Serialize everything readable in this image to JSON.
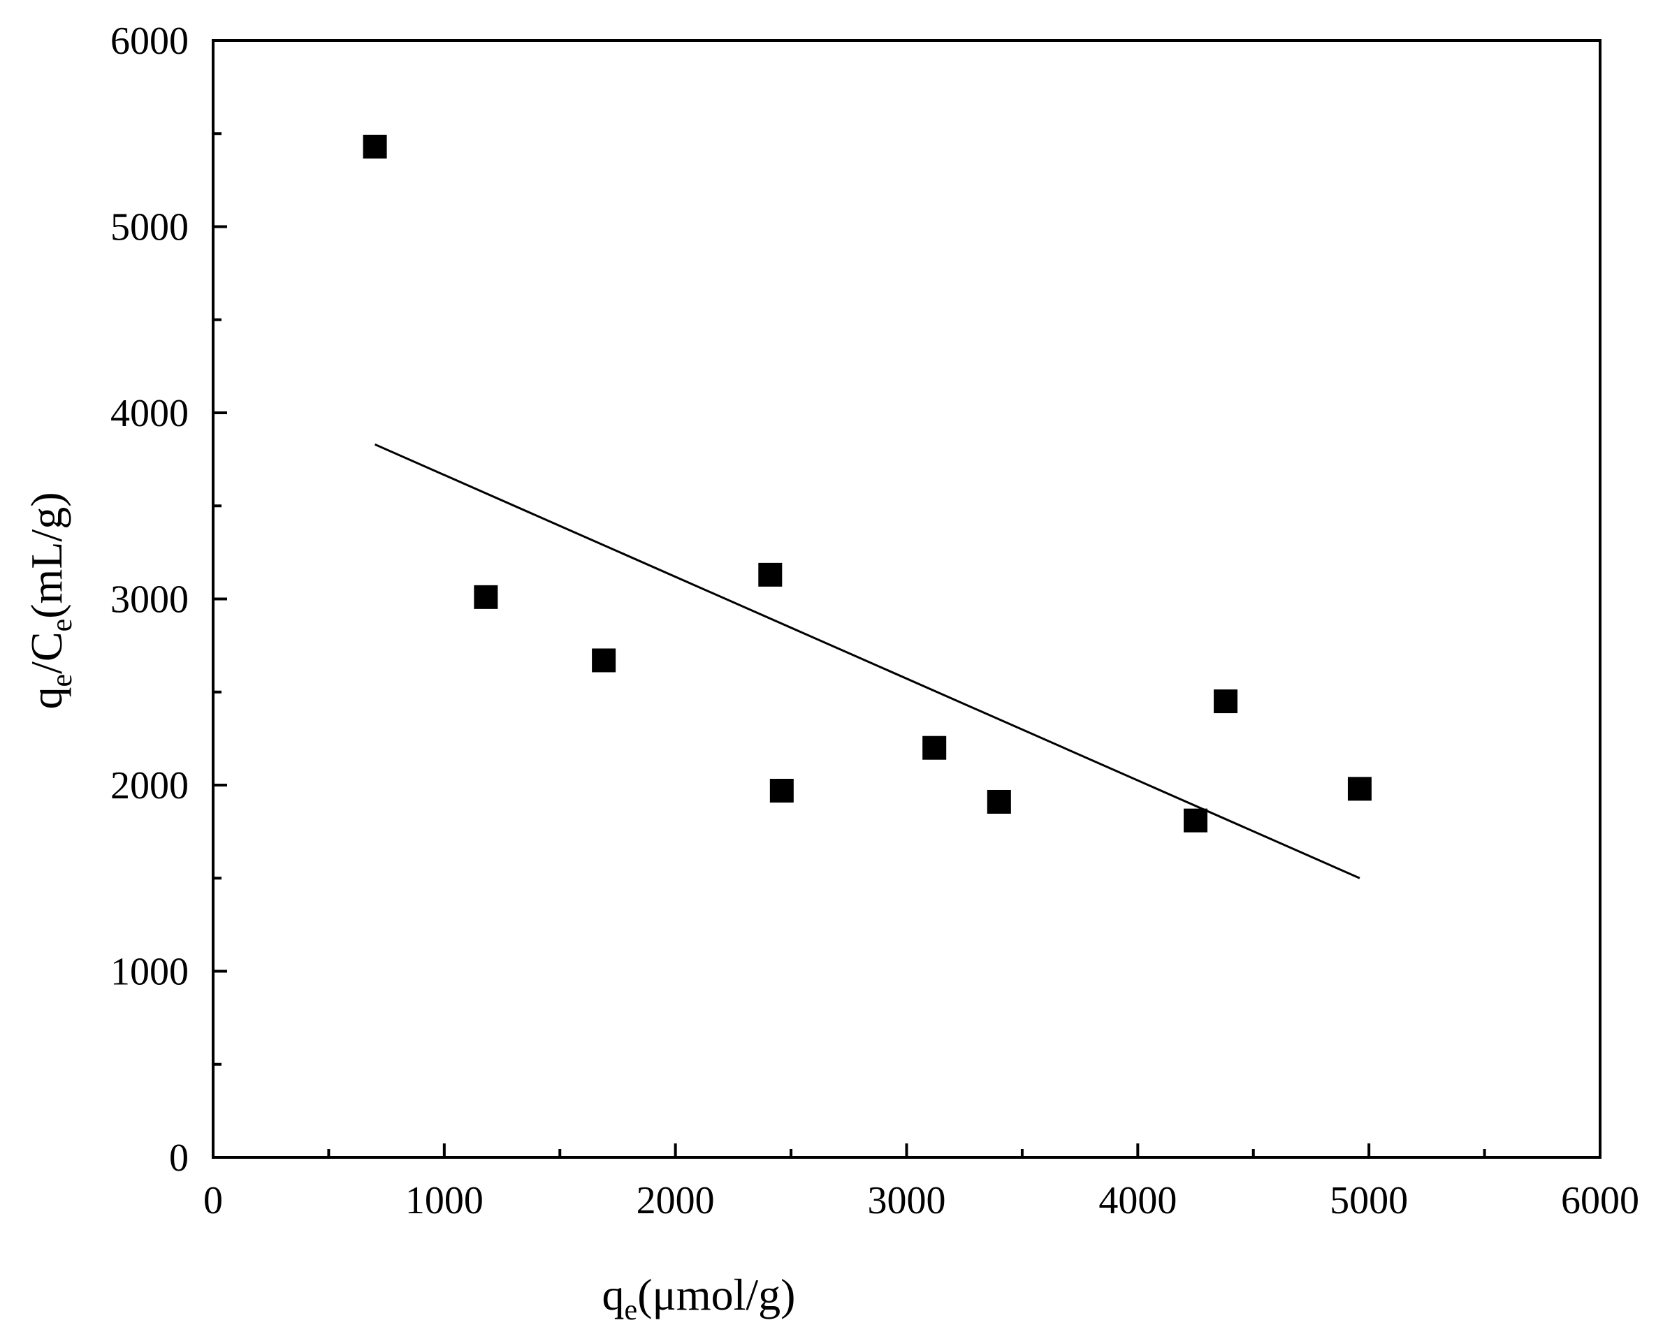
{
  "chart_data": {
    "type": "scatter",
    "xlabel": {
      "main": "q",
      "sub": "e",
      "rest": "(μmol/g)"
    },
    "ylabel": {
      "main1": "q",
      "sub1": "e",
      "mid": "/C",
      "sub2": "e",
      "rest": "(mL/g)"
    },
    "xlim": [
      0,
      6000
    ],
    "ylim": [
      0,
      6000
    ],
    "x_major_ticks": [
      0,
      1000,
      2000,
      3000,
      4000,
      5000,
      6000
    ],
    "x_minor_ticks": [
      500,
      1500,
      2500,
      3500,
      4500,
      5500
    ],
    "y_major_ticks": [
      0,
      1000,
      2000,
      3000,
      4000,
      5000,
      6000
    ],
    "y_minor_ticks": [
      500,
      1500,
      2500,
      3500,
      4500,
      5500
    ],
    "grid": false,
    "legend": "none",
    "series": [
      {
        "type": "scatter",
        "marker": "square",
        "color": "#000000",
        "points": [
          {
            "x": 700,
            "y": 5430
          },
          {
            "x": 1180,
            "y": 3010
          },
          {
            "x": 1690,
            "y": 2670
          },
          {
            "x": 2410,
            "y": 3130
          },
          {
            "x": 2460,
            "y": 1970
          },
          {
            "x": 3120,
            "y": 2200
          },
          {
            "x": 3400,
            "y": 1910
          },
          {
            "x": 4250,
            "y": 1810
          },
          {
            "x": 4380,
            "y": 2450
          },
          {
            "x": 4960,
            "y": 1980
          }
        ]
      },
      {
        "type": "line",
        "style": "linear-fit",
        "color": "#000000",
        "points": [
          {
            "x": 700,
            "y": 3830
          },
          {
            "x": 4960,
            "y": 1500
          }
        ]
      }
    ]
  }
}
